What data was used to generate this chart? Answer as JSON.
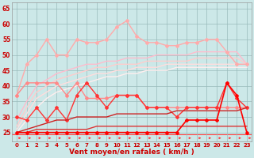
{
  "x": [
    0,
    1,
    2,
    3,
    4,
    5,
    6,
    7,
    8,
    9,
    10,
    11,
    12,
    13,
    14,
    15,
    16,
    17,
    18,
    19,
    20,
    21,
    22,
    23
  ],
  "series": [
    {
      "values": [
        29,
        35,
        40,
        42,
        44,
        45,
        46,
        47,
        47,
        48,
        48,
        49,
        49,
        49,
        50,
        50,
        50,
        50,
        51,
        51,
        51,
        51,
        51,
        47
      ],
      "color": "#ffbbcc",
      "lw": 1.0,
      "marker": null,
      "zorder": 2
    },
    {
      "values": [
        27,
        33,
        38,
        40,
        42,
        43,
        44,
        45,
        46,
        46,
        47,
        47,
        47,
        48,
        48,
        48,
        48,
        48,
        49,
        49,
        49,
        49,
        49,
        47
      ],
      "color": "#ffcccc",
      "lw": 1.0,
      "marker": null,
      "zorder": 2
    },
    {
      "values": [
        26,
        31,
        36,
        38,
        40,
        41,
        42,
        43,
        44,
        44,
        45,
        45,
        46,
        46,
        46,
        47,
        47,
        47,
        47,
        47,
        47,
        47,
        47,
        47
      ],
      "color": "#ffdddd",
      "lw": 1.0,
      "marker": null,
      "zorder": 2
    },
    {
      "values": [
        25,
        29,
        33,
        36,
        38,
        39,
        40,
        41,
        42,
        43,
        43,
        44,
        44,
        45,
        45,
        45,
        46,
        46,
        46,
        46,
        46,
        46,
        46,
        46
      ],
      "color": "#ffeeee",
      "lw": 1.0,
      "marker": null,
      "zorder": 2
    },
    {
      "values": [
        37,
        47,
        50,
        55,
        50,
        50,
        55,
        54,
        54,
        55,
        59,
        61,
        56,
        54,
        54,
        53,
        53,
        54,
        54,
        55,
        55,
        51,
        47,
        47
      ],
      "color": "#ffaaaa",
      "lw": 1.0,
      "marker": "D",
      "ms": 2.0,
      "zorder": 3
    },
    {
      "values": [
        37,
        41,
        41,
        41,
        41,
        37,
        41,
        36,
        36,
        36,
        37,
        37,
        37,
        33,
        33,
        33,
        33,
        33,
        33,
        33,
        33,
        33,
        33,
        33
      ],
      "color": "#ff8888",
      "lw": 1.0,
      "marker": "D",
      "ms": 2.0,
      "zorder": 3
    },
    {
      "values": [
        30,
        29,
        33,
        29,
        33,
        29,
        37,
        41,
        37,
        33,
        37,
        37,
        37,
        33,
        33,
        33,
        30,
        33,
        33,
        33,
        33,
        41,
        36,
        33
      ],
      "color": "#ff3333",
      "lw": 1.0,
      "marker": "D",
      "ms": 2.0,
      "zorder": 4
    },
    {
      "values": [
        25,
        26,
        27,
        28,
        29,
        29,
        30,
        30,
        30,
        30,
        31,
        31,
        31,
        31,
        31,
        31,
        32,
        32,
        32,
        32,
        32,
        32,
        32,
        33
      ],
      "color": "#cc2222",
      "lw": 1.0,
      "marker": null,
      "zorder": 4
    },
    {
      "values": [
        25,
        25,
        26,
        26,
        26,
        26,
        26,
        26,
        27,
        27,
        27,
        27,
        27,
        27,
        27,
        27,
        27,
        27,
        27,
        27,
        27,
        27,
        27,
        27
      ],
      "color": "#dd3333",
      "lw": 1.0,
      "marker": null,
      "zorder": 4
    },
    {
      "values": [
        25,
        25,
        25,
        25,
        25,
        25,
        25,
        25,
        25,
        25,
        25,
        25,
        25,
        25,
        25,
        25,
        25,
        29,
        29,
        29,
        29,
        41,
        37,
        25
      ],
      "color": "#ff0000",
      "lw": 1.2,
      "marker": "D",
      "ms": 2.0,
      "zorder": 5
    }
  ],
  "xlabel": "Vent moyen/en rafales ( km/h )",
  "ylim": [
    22,
    67
  ],
  "xlim": [
    -0.5,
    23.5
  ],
  "yticks": [
    25,
    30,
    35,
    40,
    45,
    50,
    55,
    60,
    65
  ],
  "xticks": [
    0,
    1,
    2,
    3,
    4,
    5,
    6,
    7,
    8,
    9,
    10,
    11,
    12,
    13,
    14,
    15,
    16,
    17,
    18,
    19,
    20,
    21,
    22,
    23
  ],
  "bg_color": "#cce8e8",
  "grid_color": "#99bbbb",
  "arrow_color": "#ff4444",
  "xlabel_color": "#cc0000",
  "tick_color": "#cc0000"
}
